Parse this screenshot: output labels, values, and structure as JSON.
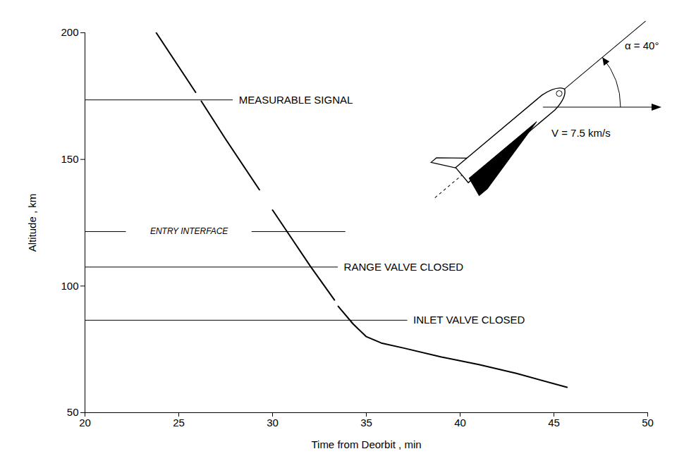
{
  "chart_data": {
    "type": "line",
    "x_label": "Time from Deorbit , min",
    "y_label": "Altitude , km",
    "x": [
      23.8,
      25.9,
      26.05,
      26.2,
      27.5,
      29.3,
      29.65,
      30.0,
      31.0,
      32.0,
      33.3,
      33.4,
      33.5,
      34.3,
      35.0,
      35.8,
      37.0,
      39.0,
      41.0,
      43.0,
      45.7
    ],
    "values": [
      200,
      176.5,
      null,
      173,
      158,
      138,
      null,
      130,
      119,
      108,
      94.5,
      null,
      92,
      85,
      80,
      77.5,
      75.5,
      72,
      69,
      65.5,
      60
    ],
    "color": "#000000",
    "xlim": [
      20,
      50
    ],
    "ylim": [
      50,
      200
    ],
    "xticks": [
      20,
      25,
      30,
      35,
      40,
      45,
      50
    ],
    "yticks": [
      50,
      100,
      150,
      200
    ],
    "grid": false,
    "reference_lines": [
      {
        "label": "MEASURABLE SIGNAL",
        "y": 173.5,
        "segments": [
          [
            20,
            27.9
          ]
        ]
      },
      {
        "label": "ENTRY INTERFACE",
        "y": 121.5,
        "segments": [
          [
            20,
            22.2
          ],
          [
            28.9,
            33.9
          ]
        ]
      },
      {
        "label": "RANGE VALVE CLOSED",
        "y": 107.5,
        "segments": [
          [
            20,
            33.5
          ]
        ]
      },
      {
        "label": "INLET VALVE CLOSED",
        "y": 86.5,
        "segments": [
          [
            20,
            37.2
          ]
        ]
      }
    ],
    "annotations": [
      "α = 40°",
      "V = 7.5 km/s"
    ]
  }
}
